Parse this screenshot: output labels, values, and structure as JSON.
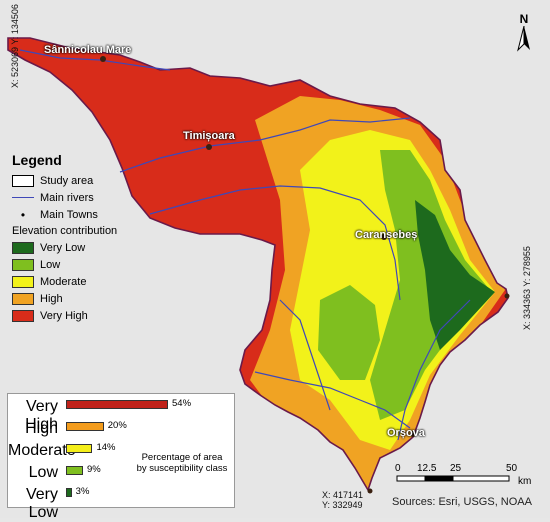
{
  "map": {
    "towns": [
      {
        "name": "Sânnicolau Mare"
      },
      {
        "name": "Timișoara"
      },
      {
        "name": "Caransebeș"
      },
      {
        "name": "Orșova"
      }
    ],
    "coordinates": {
      "nw": "X: 523069 Y: 134506",
      "east": "X: 334363 Y: 278955",
      "south": "X: 417141\nY: 332949"
    },
    "north_arrow_label": "N",
    "scale": {
      "ticks": [
        "0",
        "12.5",
        "25",
        "50"
      ],
      "unit": "km"
    },
    "sources": "Sources: Esri, USGS, NOAA"
  },
  "legend": {
    "title": "Legend",
    "study_area": "Study area",
    "rivers": "Main rivers",
    "towns": "Main Towns",
    "elevation_title": "Elevation contribution",
    "classes": [
      {
        "label": "Very Low",
        "color": "#1d6a1d"
      },
      {
        "label": "Low",
        "color": "#7fbf1f"
      },
      {
        "label": "Moderate",
        "color": "#f2f21a"
      },
      {
        "label": "High",
        "color": "#f0a323"
      },
      {
        "label": "Very High",
        "color": "#d82c1a"
      }
    ]
  },
  "chart_data": {
    "type": "bar",
    "categories": [
      "Very High",
      "High",
      "Moderate",
      "Low",
      "Very Low"
    ],
    "values": [
      54,
      20,
      14,
      9,
      3
    ],
    "labels": [
      "54%",
      "20%",
      "14%",
      "9%",
      "3%"
    ],
    "colors": [
      "#c0221a",
      "#f39c1c",
      "#f5ef1a",
      "#7fbf1f",
      "#1d6a1d"
    ],
    "note": "Percentage of area by susceptibility class"
  }
}
